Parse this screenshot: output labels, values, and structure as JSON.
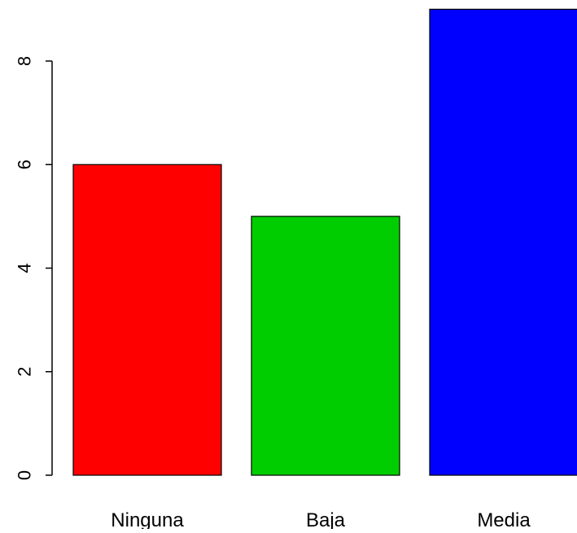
{
  "chart_data": {
    "type": "bar",
    "title": "",
    "xlabel": "",
    "ylabel": "",
    "categories": [
      "Ninguna",
      "Baja",
      "Media"
    ],
    "values": [
      6,
      5,
      9
    ],
    "colors": [
      "#ff0000",
      "#00cd00",
      "#0000ff"
    ],
    "bar_border_color": "#000000",
    "ylim": [
      0,
      9
    ],
    "yticks": [
      0,
      2,
      4,
      6,
      8
    ],
    "grid": false,
    "legend": "none"
  }
}
